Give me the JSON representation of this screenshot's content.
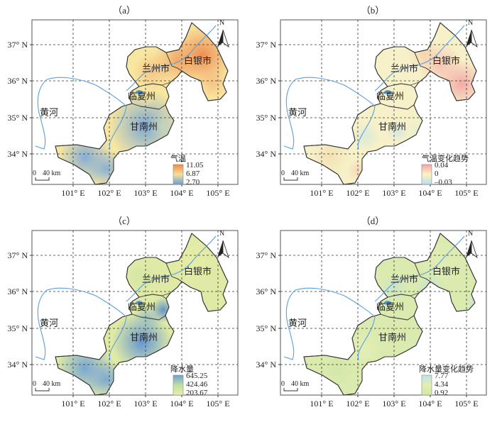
{
  "panels": [
    {
      "label": "（a）",
      "legend_title": "气温",
      "legend_values": [
        "11.05",
        "6.87",
        "2.70"
      ],
      "legend_colors": [
        "#f08a4b",
        "#f5e09a",
        "#6b9fd8"
      ]
    },
    {
      "label": "（b）",
      "legend_title": "气温变化趋势",
      "legend_values": [
        "0.04",
        "0",
        "–0.03"
      ],
      "legend_colors": [
        "#f5a5a8",
        "#fbf3c4",
        "#b8ddf0"
      ]
    },
    {
      "label": "（c）",
      "legend_title": "降水量",
      "legend_values": [
        "645.25",
        "424.46",
        "203.67"
      ],
      "legend_colors": [
        "#6b9fd8",
        "#bfe0a0",
        "#e8eea8"
      ]
    },
    {
      "label": "（d）",
      "legend_title": "降水量变化趋势",
      "legend_values": [
        "7.77",
        "4.34",
        "0.92"
      ],
      "legend_colors": [
        "#bfe0ec",
        "#e3efb0",
        "#d2e8a0"
      ]
    }
  ],
  "lat_labels": [
    "37° N",
    "36° N",
    "35° N",
    "34° N"
  ],
  "lon_labels": [
    "101° E",
    "102° E",
    "103° E",
    "104° E",
    "105° E"
  ],
  "places": {
    "lanzhou": "兰州市",
    "baiyin": "白银市",
    "linxia": "临夏州",
    "gannan": "甘南州",
    "river": "黄河"
  },
  "scale_bar": {
    "zero": "0",
    "distance": "40 km"
  },
  "north_arrow": {
    "label": "N"
  }
}
